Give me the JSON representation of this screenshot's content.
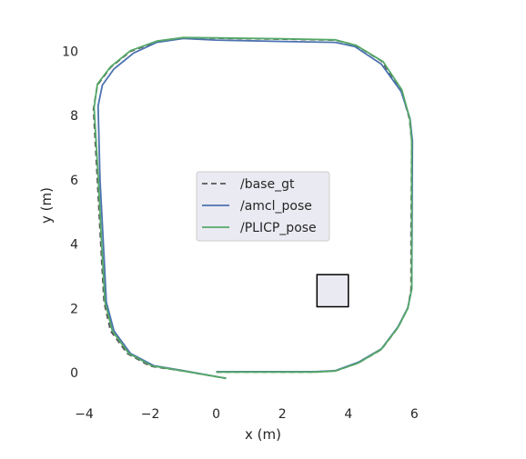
{
  "chart_data": {
    "type": "line",
    "xlabel": "x (m)",
    "ylabel": "y (m)",
    "xlim": [
      -4.4,
      6.9
    ],
    "ylim": [
      -0.85,
      10.75
    ],
    "xticks": [
      -4,
      -2,
      0,
      2,
      4,
      6
    ],
    "yticks": [
      0,
      2,
      4,
      6,
      8,
      10
    ],
    "x_tick_labels": [
      "−4",
      "−2",
      "0",
      "2",
      "4",
      "6"
    ],
    "y_tick_labels": [
      "0",
      "2",
      "4",
      "6",
      "8",
      "10"
    ],
    "grid": false,
    "legend_position": "center",
    "background": "#ffffff",
    "series": [
      {
        "name": "/base_gt",
        "color": "#555555",
        "dash": "dashed",
        "points": [
          [
            0,
            0.02
          ],
          [
            1,
            0.02
          ],
          [
            2,
            0.02
          ],
          [
            3,
            0.02
          ],
          [
            3.6,
            0.05
          ],
          [
            4.3,
            0.3
          ],
          [
            5.0,
            0.72
          ],
          [
            5.5,
            1.4
          ],
          [
            5.8,
            2.0
          ],
          [
            5.9,
            2.6
          ],
          [
            5.9,
            4.5
          ],
          [
            5.92,
            7.2
          ],
          [
            5.85,
            7.9
          ],
          [
            5.6,
            8.8
          ],
          [
            5.0,
            9.7
          ],
          [
            4.2,
            10.2
          ],
          [
            3.6,
            10.35
          ],
          [
            2.0,
            10.38
          ],
          [
            0.0,
            10.41
          ],
          [
            -1.0,
            10.42
          ],
          [
            -1.8,
            10.3
          ],
          [
            -2.6,
            10.0
          ],
          [
            -3.2,
            9.5
          ],
          [
            -3.6,
            8.95
          ],
          [
            -3.72,
            8.2
          ],
          [
            -3.6,
            6.0
          ],
          [
            -3.5,
            4.0
          ],
          [
            -3.4,
            2.2
          ],
          [
            -3.2,
            1.3
          ],
          [
            -2.7,
            0.6
          ],
          [
            -2.0,
            0.2
          ],
          [
            -1.0,
            0.05
          ],
          [
            0.3,
            -0.18
          ]
        ]
      },
      {
        "name": "/amcl_pose",
        "color": "#4c72b0",
        "dash": "solid",
        "points": [
          [
            0,
            0.03
          ],
          [
            1,
            0.03
          ],
          [
            2,
            0.03
          ],
          [
            3,
            0.03
          ],
          [
            3.6,
            0.06
          ],
          [
            4.3,
            0.32
          ],
          [
            5.0,
            0.74
          ],
          [
            5.5,
            1.42
          ],
          [
            5.8,
            2.02
          ],
          [
            5.92,
            2.6
          ],
          [
            5.93,
            4.5
          ],
          [
            5.94,
            7.2
          ],
          [
            5.87,
            7.9
          ],
          [
            5.6,
            8.75
          ],
          [
            5.0,
            9.6
          ],
          [
            4.2,
            10.15
          ],
          [
            3.6,
            10.28
          ],
          [
            2.0,
            10.31
          ],
          [
            0.0,
            10.35
          ],
          [
            -1.0,
            10.4
          ],
          [
            -1.8,
            10.28
          ],
          [
            -2.5,
            9.95
          ],
          [
            -3.1,
            9.45
          ],
          [
            -3.45,
            8.95
          ],
          [
            -3.58,
            8.3
          ],
          [
            -3.52,
            6.0
          ],
          [
            -3.42,
            4.0
          ],
          [
            -3.33,
            2.2
          ],
          [
            -3.1,
            1.3
          ],
          [
            -2.6,
            0.6
          ],
          [
            -1.9,
            0.22
          ],
          [
            -1.0,
            0.06
          ],
          [
            0.3,
            -0.18
          ]
        ]
      },
      {
        "name": "/PLICP_pose",
        "color": "#55a868",
        "dash": "solid",
        "points": [
          [
            0,
            0.02
          ],
          [
            1,
            0.02
          ],
          [
            2,
            0.02
          ],
          [
            3,
            0.02
          ],
          [
            3.6,
            0.05
          ],
          [
            4.3,
            0.3
          ],
          [
            5.0,
            0.73
          ],
          [
            5.5,
            1.4
          ],
          [
            5.8,
            2.0
          ],
          [
            5.92,
            2.6
          ],
          [
            5.92,
            4.5
          ],
          [
            5.92,
            7.2
          ],
          [
            5.86,
            7.9
          ],
          [
            5.62,
            8.8
          ],
          [
            5.05,
            9.68
          ],
          [
            4.25,
            10.18
          ],
          [
            3.6,
            10.36
          ],
          [
            2.0,
            10.39
          ],
          [
            0.0,
            10.42
          ],
          [
            -1.0,
            10.43
          ],
          [
            -1.8,
            10.32
          ],
          [
            -2.6,
            10.02
          ],
          [
            -3.2,
            9.52
          ],
          [
            -3.6,
            8.98
          ],
          [
            -3.7,
            8.25
          ],
          [
            -3.57,
            6.0
          ],
          [
            -3.47,
            4.0
          ],
          [
            -3.37,
            2.2
          ],
          [
            -3.15,
            1.3
          ],
          [
            -2.65,
            0.6
          ],
          [
            -1.95,
            0.21
          ],
          [
            -1.0,
            0.05
          ],
          [
            0.3,
            -0.18
          ]
        ]
      }
    ],
    "inset_box": {
      "x": [
        3.05,
        4.0
      ],
      "y": [
        2.05,
        3.05
      ],
      "fill": "#eaeaf2",
      "stroke": "#000000"
    }
  }
}
